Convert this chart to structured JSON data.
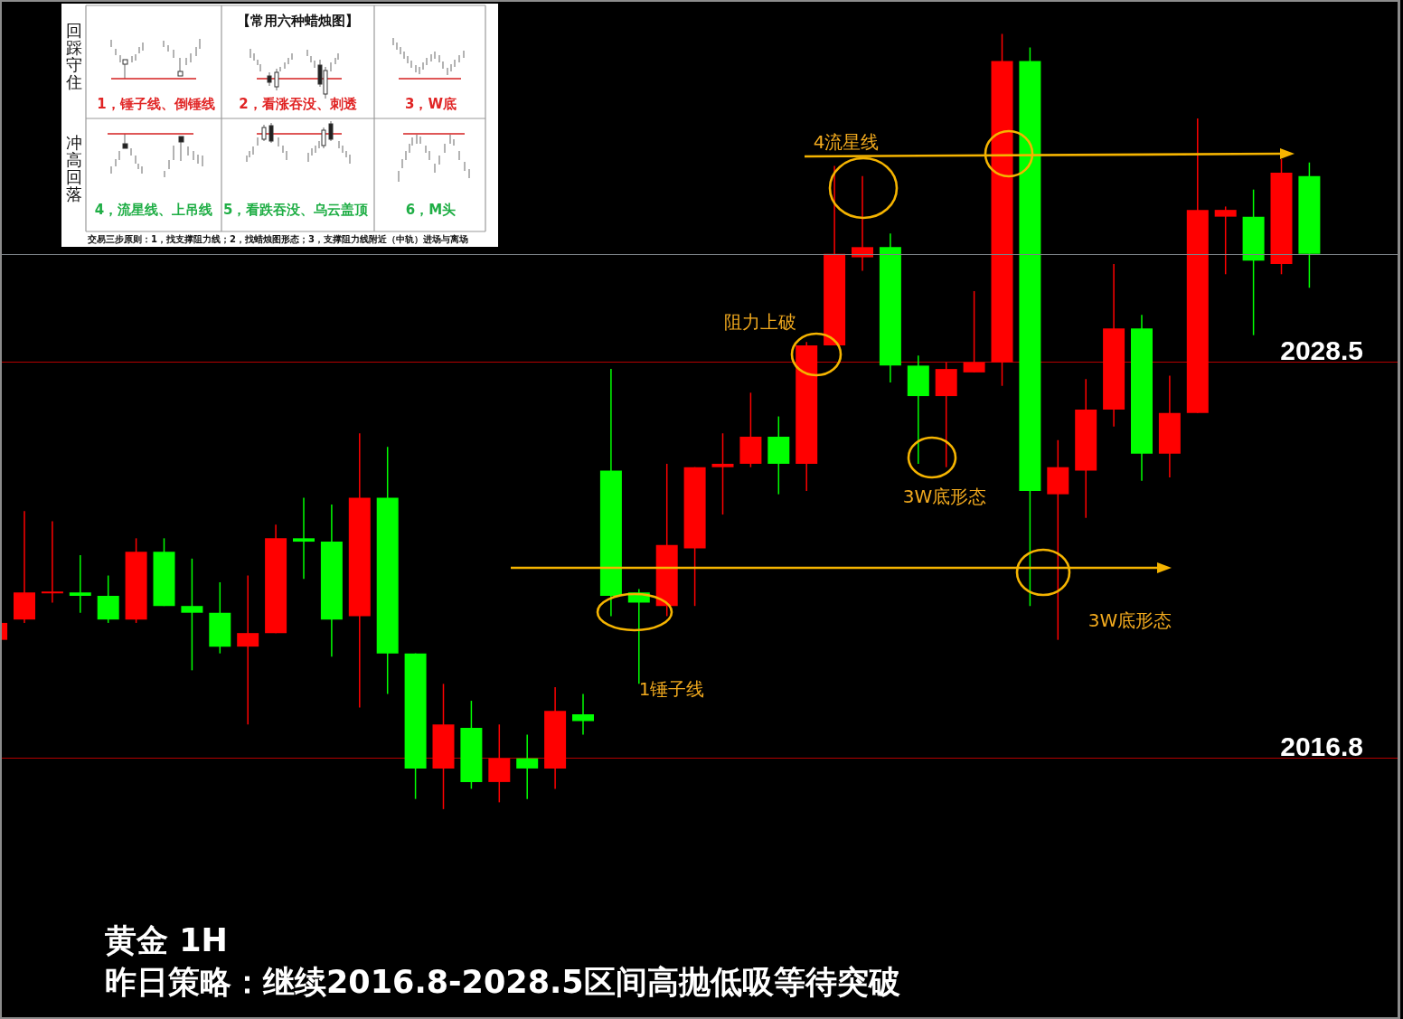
{
  "chart_data": {
    "type": "candlestick",
    "title": "黄金 1H",
    "subtitle": "昨日策略：继续2016.8-2028.5区间高抛低吸等待突破",
    "categories": [
      null,
      null,
      null,
      null,
      null,
      null,
      null,
      null,
      null,
      null,
      null,
      null,
      null,
      null,
      null,
      null,
      null,
      null,
      null,
      null,
      null,
      null,
      null,
      null,
      null,
      null,
      null,
      null,
      null,
      null,
      null,
      null,
      null,
      null,
      null,
      null,
      null,
      null,
      null,
      null,
      null,
      null,
      null,
      null,
      null,
      null,
      null,
      null
    ],
    "ohlc": [
      [
        2020.3,
        2020.8,
        2020.3,
        2020.8
      ],
      [
        2020.9,
        2024.1,
        2020.8,
        2021.7
      ],
      [
        2021.7,
        2023.8,
        2021.4,
        2021.7
      ],
      [
        2021.7,
        2022.8,
        2021.1,
        2021.6
      ],
      [
        2021.6,
        2022.2,
        2020.8,
        2020.9
      ],
      [
        2020.9,
        2023.3,
        2020.8,
        2022.9
      ],
      [
        2022.9,
        2023.3,
        2021.3,
        2021.3
      ],
      [
        2021.3,
        2022.7,
        2019.4,
        2021.1
      ],
      [
        2021.1,
        2022.0,
        2019.9,
        2020.1
      ],
      [
        2020.1,
        2022.2,
        2017.8,
        2020.5
      ],
      [
        2020.5,
        2023.7,
        2020.5,
        2023.3
      ],
      [
        2023.3,
        2024.5,
        2022.1,
        2023.2
      ],
      [
        2023.2,
        2024.3,
        2019.8,
        2020.9
      ],
      [
        2021.0,
        2026.4,
        2018.3,
        2024.5
      ],
      [
        2024.5,
        2026.0,
        2018.7,
        2019.9
      ],
      [
        2019.9,
        2019.9,
        2015.6,
        2016.5
      ],
      [
        2016.5,
        2019.0,
        2015.3,
        2017.8
      ],
      [
        2017.7,
        2018.5,
        2015.9,
        2016.1
      ],
      [
        2016.1,
        2017.8,
        2015.5,
        2016.8
      ],
      [
        2016.8,
        2017.5,
        2015.6,
        2016.5
      ],
      [
        2016.5,
        2018.9,
        2015.9,
        2018.2
      ],
      [
        2018.1,
        2018.7,
        2017.5,
        2017.9
      ],
      [
        2025.3,
        2028.3,
        2021.0,
        2021.6
      ],
      [
        2021.7,
        2021.8,
        2019.0,
        2021.4
      ],
      [
        2021.3,
        2025.5,
        2021.0,
        2023.1
      ],
      [
        2023.0,
        2025.4,
        2021.3,
        2025.4
      ],
      [
        2025.4,
        2026.4,
        2024.0,
        2025.5
      ],
      [
        2025.5,
        2027.6,
        2025.4,
        2026.3
      ],
      [
        2026.3,
        2026.9,
        2024.6,
        2025.5
      ],
      [
        2025.5,
        2029.1,
        2024.7,
        2029.0
      ],
      [
        2029.0,
        2034.3,
        2029.0,
        2031.7
      ],
      [
        2031.6,
        2034.0,
        2031.2,
        2031.9
      ],
      [
        2031.9,
        2032.3,
        2027.9,
        2028.4
      ],
      [
        2028.4,
        2028.7,
        2025.5,
        2027.5
      ],
      [
        2027.5,
        2028.5,
        2025.4,
        2028.3
      ],
      [
        2028.2,
        2030.6,
        2028.2,
        2028.5
      ],
      [
        2028.5,
        2038.2,
        2027.8,
        2037.4
      ],
      [
        2037.4,
        2037.8,
        2021.3,
        2024.7
      ],
      [
        2024.6,
        2026.2,
        2020.3,
        2025.4
      ],
      [
        2025.3,
        2028.0,
        2023.9,
        2027.1
      ],
      [
        2027.1,
        2031.4,
        2026.6,
        2029.5
      ],
      [
        2029.5,
        2029.9,
        2025.0,
        2025.8
      ],
      [
        2025.8,
        2028.1,
        2025.1,
        2027.0
      ],
      [
        2027.0,
        2035.7,
        2027.0,
        2033.0
      ],
      [
        2032.8,
        2033.1,
        2031.1,
        2033.0
      ],
      [
        2032.8,
        2033.6,
        2029.3,
        2031.5
      ],
      [
        2031.4,
        2034.5,
        2031.1,
        2034.1
      ],
      [
        2034.0,
        2034.4,
        2030.7,
        2031.7
      ]
    ],
    "colors": [
      "#ff0000",
      "#ff0000",
      "#ff0000",
      "#00ff00",
      "#00ff00",
      "#ff0000",
      "#00ff00",
      "#00ff00",
      "#00ff00",
      "#ff0000",
      "#ff0000",
      "#00ff00",
      "#00ff00",
      "#ff0000",
      "#00ff00",
      "#00ff00",
      "#ff0000",
      "#00ff00",
      "#ff0000",
      "#00ff00",
      "#ff0000",
      "#00ff00",
      "#00ff00",
      "#00ff00",
      "#ff0000",
      "#ff0000",
      "#ff0000",
      "#ff0000",
      "#00ff00",
      "#ff0000",
      "#ff0000",
      "#ff0000",
      "#00ff00",
      "#00ff00",
      "#ff0000",
      "#ff0000",
      "#ff0000",
      "#00ff00",
      "#ff0000",
      "#ff0000",
      "#ff0000",
      "#00ff00",
      "#ff0000",
      "#ff0000",
      "#ff0000",
      "#00ff00",
      "#ff0000",
      "#00ff00"
    ],
    "ylim": [
      2009.1,
      2039.2
    ],
    "yticks": [
      2016.8,
      2028.5
    ],
    "grid": "y",
    "tick_labels": "y",
    "ref_lines": [
      {
        "axis": "y",
        "value": 2031.7,
        "color": "#7c8288"
      }
    ],
    "annotations": [
      "4流星线",
      "阻力上破",
      "3W底形态",
      "3W底形态",
      "1锤子线",
      "【常用六种蜡烛图】",
      "回踩守住",
      "冲高回落",
      "1，锤子线、倒锤线",
      "2，看涨吞没、刺透",
      "3，W底",
      "4，流星线、上吊线",
      "5，看跌吞没、乌云盖顶",
      "6，M头",
      "交易三步原则：1，找支撑阻力线；2，找蜡烛图形态；3，支撑阻力线附近（中轨）进场与离场"
    ]
  }
}
